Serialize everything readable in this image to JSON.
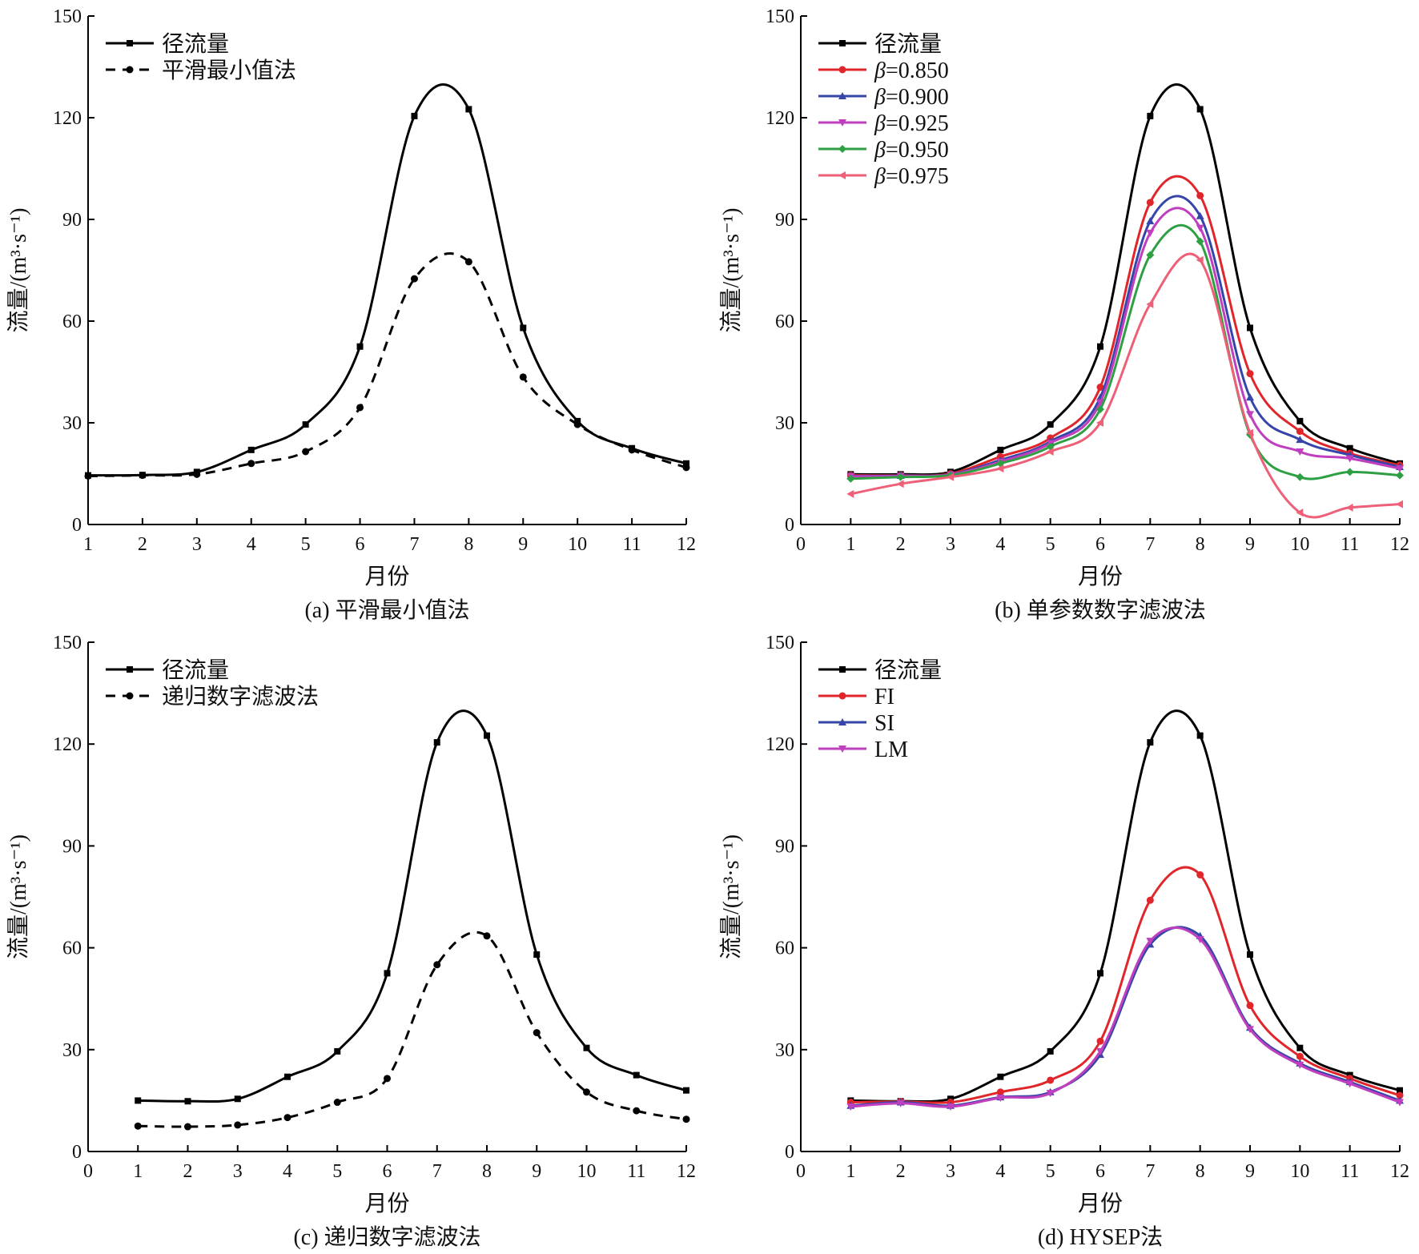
{
  "chart_data": [
    {
      "type": "line",
      "caption": "(a) 平滑最小值法",
      "xlabel": "月份",
      "ylabel": "流量/(m³·s⁻¹)",
      "xlim": [
        1,
        12
      ],
      "ylim": [
        0,
        150
      ],
      "xticks": [
        1,
        2,
        3,
        4,
        5,
        6,
        7,
        8,
        9,
        10,
        11,
        12
      ],
      "yticks": [
        0,
        30,
        60,
        90,
        120,
        150
      ],
      "legend_position": "top-left",
      "x": [
        1,
        2,
        3,
        4,
        5,
        6,
        7,
        8,
        9,
        10,
        11,
        12
      ],
      "series": [
        {
          "name": "径流量",
          "style": "solid",
          "color": "#000000",
          "marker": "square",
          "values": [
            14.5,
            14.6,
            15.5,
            22,
            29.5,
            52.5,
            120.5,
            122.5,
            58,
            30.5,
            22.5,
            18
          ]
        },
        {
          "name": "平滑最小值法",
          "style": "dashed",
          "color": "#000000",
          "marker": "circle",
          "values": [
            14.3,
            14.5,
            14.8,
            18,
            21.5,
            34.5,
            72.5,
            77.5,
            43.5,
            29.5,
            22,
            16.8
          ]
        }
      ]
    },
    {
      "type": "line",
      "caption": "(b) 单参数数字滤波法",
      "xlabel": "月份",
      "ylabel": "流量/(m³·s⁻¹)",
      "xlim": [
        0,
        12
      ],
      "ylim": [
        0,
        150
      ],
      "xticks": [
        0,
        1,
        2,
        3,
        4,
        5,
        6,
        7,
        8,
        9,
        10,
        11,
        12
      ],
      "yticks": [
        0,
        30,
        60,
        90,
        120,
        150
      ],
      "legend_position": "top-left",
      "x": [
        1,
        2,
        3,
        4,
        5,
        6,
        7,
        8,
        9,
        10,
        11,
        12
      ],
      "series": [
        {
          "name": "径流量",
          "label_prefix": "",
          "label_value": "径流量",
          "style": "solid",
          "color": "#000000",
          "marker": "square",
          "values": [
            14.8,
            14.8,
            15.5,
            22,
            29.5,
            52.5,
            120.5,
            122.5,
            58,
            30.5,
            22.5,
            18
          ]
        },
        {
          "name": "β=0.850",
          "label_prefix": "β",
          "label_value": "=0.850",
          "style": "solid",
          "color": "#e0262b",
          "marker": "circle",
          "values": [
            14.5,
            14.5,
            15,
            20,
            25.5,
            40.5,
            95,
            97,
            44.5,
            27.5,
            21,
            17.5
          ]
        },
        {
          "name": "β=0.900",
          "label_prefix": "β",
          "label_value": "=0.900",
          "style": "solid",
          "color": "#3645a8",
          "marker": "triangle-up",
          "values": [
            14.3,
            14.4,
            14.8,
            19,
            24.5,
            37.5,
            89.5,
            91,
            37.5,
            25,
            20.5,
            17
          ]
        },
        {
          "name": "β=0.925",
          "label_prefix": "β",
          "label_value": "=0.925",
          "style": "solid",
          "color": "#bf3fbf",
          "marker": "triangle-down",
          "values": [
            14.2,
            14.3,
            14.7,
            18.5,
            24,
            36,
            86,
            87.5,
            32.5,
            21.5,
            19.5,
            16.5
          ]
        },
        {
          "name": "β=0.950",
          "label_prefix": "β",
          "label_value": "=0.950",
          "style": "solid",
          "color": "#2ea043",
          "marker": "diamond",
          "values": [
            13.5,
            14,
            14.5,
            18,
            23,
            34,
            79.5,
            83.5,
            26.5,
            14,
            15.5,
            14.5
          ]
        },
        {
          "name": "β=0.975",
          "label_prefix": "β",
          "label_value": "=0.975",
          "style": "solid",
          "color": "#ee5f78",
          "marker": "triangle-left",
          "values": [
            9,
            12,
            14,
            16.5,
            21.5,
            30,
            65,
            78,
            27,
            3.5,
            5,
            6
          ]
        }
      ]
    },
    {
      "type": "line",
      "caption": "(c) 递归数字滤波法",
      "xlabel": "月份",
      "ylabel": "流量/(m³·s⁻¹)",
      "xlim": [
        0,
        12
      ],
      "ylim": [
        0,
        150
      ],
      "xticks": [
        0,
        1,
        2,
        3,
        4,
        5,
        6,
        7,
        8,
        9,
        10,
        11,
        12
      ],
      "yticks": [
        0,
        30,
        60,
        90,
        120,
        150
      ],
      "legend_position": "top-left",
      "x": [
        1,
        2,
        3,
        4,
        5,
        6,
        7,
        8,
        9,
        10,
        11,
        12
      ],
      "series": [
        {
          "name": "径流量",
          "style": "solid",
          "color": "#000000",
          "marker": "square",
          "values": [
            15,
            14.8,
            15.5,
            22,
            29.5,
            52.5,
            120.5,
            122.5,
            58,
            30.5,
            22.5,
            18
          ]
        },
        {
          "name": "递归数字滤波法",
          "style": "dashed",
          "color": "#000000",
          "marker": "circle",
          "values": [
            7.5,
            7.3,
            7.8,
            10,
            14.5,
            21.5,
            55,
            63.5,
            35,
            17.5,
            12,
            9.5
          ]
        }
      ]
    },
    {
      "type": "line",
      "caption": "(d) HYSEP法",
      "xlabel": "月份",
      "ylabel": "流量/(m³·s⁻¹)",
      "xlim": [
        0,
        12
      ],
      "ylim": [
        0,
        150
      ],
      "xticks": [
        0,
        1,
        2,
        3,
        4,
        5,
        6,
        7,
        8,
        9,
        10,
        11,
        12
      ],
      "yticks": [
        0,
        30,
        60,
        90,
        120,
        150
      ],
      "legend_position": "top-left",
      "x": [
        1,
        2,
        3,
        4,
        5,
        6,
        7,
        8,
        9,
        10,
        11,
        12
      ],
      "series": [
        {
          "name": "径流量",
          "style": "solid",
          "color": "#000000",
          "marker": "square",
          "values": [
            15,
            14.8,
            15.5,
            22,
            29.5,
            52.5,
            120.5,
            122.5,
            58,
            30.5,
            22.5,
            18
          ]
        },
        {
          "name": "FI",
          "style": "solid",
          "color": "#e0262b",
          "marker": "circle",
          "values": [
            14.5,
            14.7,
            14.5,
            17.5,
            21,
            32.5,
            74,
            81.5,
            43,
            28,
            21.5,
            16.5
          ]
        },
        {
          "name": "SI",
          "style": "solid",
          "color": "#3645a8",
          "marker": "triangle-up",
          "values": [
            13.5,
            14.5,
            13.5,
            16,
            17.5,
            28.5,
            61,
            63.5,
            36.5,
            26,
            20.5,
            15
          ]
        },
        {
          "name": "LM",
          "style": "solid",
          "color": "#bf3fbf",
          "marker": "triangle-down",
          "values": [
            13.2,
            14.2,
            13.2,
            15.8,
            17.2,
            29.5,
            62,
            62.5,
            36,
            25.5,
            20,
            14.5
          ]
        }
      ]
    }
  ]
}
